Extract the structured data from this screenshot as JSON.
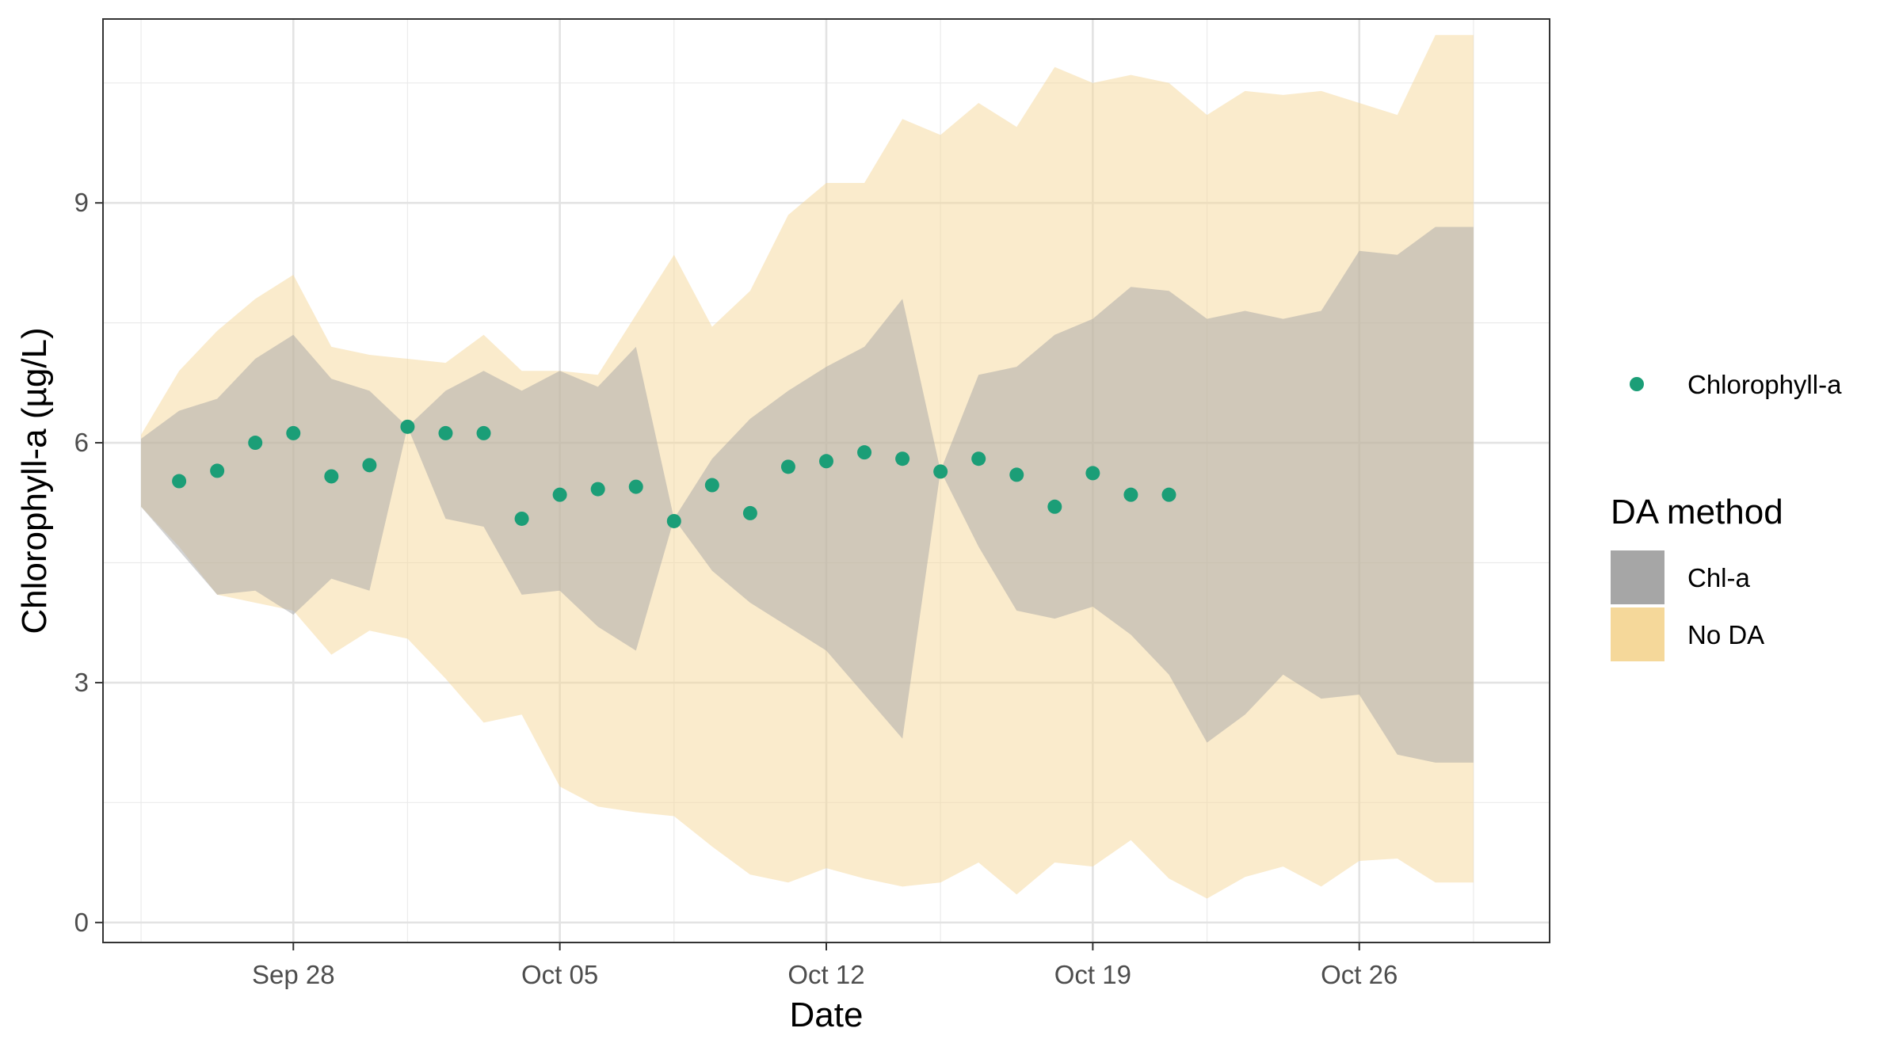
{
  "chart_data": {
    "type": "area",
    "xlabel": "Date",
    "ylabel": "Chlorophyll-a (µg/L)",
    "x_tick_labels": [
      "Sep 28",
      "Oct 05",
      "Oct 12",
      "Oct 19",
      "Oct 26"
    ],
    "x_tick_dates": [
      "2023-09-28",
      "2023-10-05",
      "2023-10-12",
      "2023-10-19",
      "2023-10-26"
    ],
    "x_minor_break_dates": [
      "2023-09-24",
      "2023-10-01",
      "2023-10-08",
      "2023-10-15",
      "2023-10-22",
      "2023-10-29"
    ],
    "xlim": [
      "2023-09-23",
      "2023-10-31"
    ],
    "y_ticks": [
      0,
      3,
      6,
      9
    ],
    "y_tick_labels": [
      "0",
      "3",
      "6",
      "9"
    ],
    "y_minor_breaks": [
      1.5,
      4.5,
      7.5,
      10.5
    ],
    "ylim": [
      -0.25,
      11.3
    ],
    "grid": true,
    "legend_position": "right",
    "point_legend": {
      "label": "Chlorophyll-a",
      "color": "#1b9e77"
    },
    "band_legend": {
      "title": "DA method",
      "entries": [
        {
          "label": "Chl-a",
          "color": "#a6a6a6"
        },
        {
          "label": "No DA",
          "color": "#f5d89a"
        }
      ]
    },
    "bands": [
      {
        "name": "No DA",
        "color": "#f5d89a",
        "opacity": 0.5,
        "dates": [
          "2023-09-24",
          "2023-09-25",
          "2023-09-26",
          "2023-09-27",
          "2023-09-28",
          "2023-09-29",
          "2023-09-30",
          "2023-10-01",
          "2023-10-02",
          "2023-10-03",
          "2023-10-04",
          "2023-10-05",
          "2023-10-06",
          "2023-10-07",
          "2023-10-08",
          "2023-10-09",
          "2023-10-10",
          "2023-10-11",
          "2023-10-12",
          "2023-10-13",
          "2023-10-14",
          "2023-10-15",
          "2023-10-16",
          "2023-10-17",
          "2023-10-18",
          "2023-10-19",
          "2023-10-20",
          "2023-10-21",
          "2023-10-22",
          "2023-10-23",
          "2023-10-24",
          "2023-10-25",
          "2023-10-26",
          "2023-10-27",
          "2023-10-28",
          "2023-10-29"
        ],
        "lower": [
          5.2,
          4.7,
          4.1,
          4.0,
          3.9,
          3.35,
          3.65,
          3.55,
          3.05,
          2.5,
          2.6,
          1.7,
          1.45,
          1.38,
          1.33,
          0.95,
          0.6,
          0.5,
          0.68,
          0.55,
          0.45,
          0.5,
          0.75,
          0.35,
          0.75,
          0.7,
          1.03,
          0.55,
          0.3,
          0.57,
          0.7,
          0.45,
          0.77,
          0.8,
          0.5,
          0.5
        ],
        "upper": [
          6.1,
          6.9,
          7.4,
          7.8,
          8.1,
          7.2,
          7.1,
          7.05,
          7.0,
          7.35,
          6.9,
          6.9,
          6.85,
          7.6,
          8.35,
          7.45,
          7.9,
          8.85,
          9.25,
          9.25,
          10.05,
          9.85,
          10.25,
          9.95,
          10.7,
          10.5,
          10.6,
          10.5,
          10.1,
          10.4,
          10.35,
          10.4,
          10.25,
          10.1,
          11.1,
          11.1
        ]
      },
      {
        "name": "Chl-a",
        "color": "#a6a6a6",
        "opacity": 0.5,
        "dates": [
          "2023-09-24",
          "2023-09-25",
          "2023-09-26",
          "2023-09-27",
          "2023-09-28",
          "2023-09-29",
          "2023-09-30",
          "2023-10-01",
          "2023-10-02",
          "2023-10-03",
          "2023-10-04",
          "2023-10-05",
          "2023-10-06",
          "2023-10-07",
          "2023-10-08",
          "2023-10-09",
          "2023-10-10",
          "2023-10-11",
          "2023-10-12",
          "2023-10-13",
          "2023-10-14",
          "2023-10-15",
          "2023-10-16",
          "2023-10-17",
          "2023-10-18",
          "2023-10-19",
          "2023-10-20",
          "2023-10-21",
          "2023-10-22",
          "2023-10-23",
          "2023-10-24",
          "2023-10-25",
          "2023-10-26",
          "2023-10-27",
          "2023-10-28",
          "2023-10-29"
        ],
        "lower": [
          5.2,
          4.65,
          4.1,
          4.15,
          3.85,
          4.3,
          4.15,
          6.2,
          5.05,
          4.95,
          4.1,
          4.15,
          3.7,
          3.4,
          5.05,
          4.4,
          4.0,
          3.7,
          3.4,
          2.85,
          2.3,
          5.65,
          4.7,
          3.9,
          3.8,
          3.95,
          3.6,
          3.1,
          2.25,
          2.6,
          3.1,
          2.8,
          2.85,
          2.1,
          2.0,
          2.0
        ],
        "upper": [
          6.05,
          6.4,
          6.55,
          7.05,
          7.35,
          6.8,
          6.65,
          6.2,
          6.65,
          6.9,
          6.65,
          6.9,
          6.7,
          7.2,
          5.05,
          5.8,
          6.3,
          6.65,
          6.95,
          7.2,
          7.8,
          5.65,
          6.85,
          6.95,
          7.35,
          7.55,
          7.95,
          7.9,
          7.55,
          7.65,
          7.55,
          7.65,
          8.4,
          8.35,
          8.7,
          8.7
        ]
      }
    ],
    "points": {
      "name": "Chlorophyll-a",
      "color": "#1b9e77",
      "dates": [
        "2023-09-25",
        "2023-09-26",
        "2023-09-27",
        "2023-09-28",
        "2023-09-29",
        "2023-09-30",
        "2023-10-01",
        "2023-10-02",
        "2023-10-03",
        "2023-10-04",
        "2023-10-05",
        "2023-10-06",
        "2023-10-07",
        "2023-10-08",
        "2023-10-09",
        "2023-10-10",
        "2023-10-11",
        "2023-10-12",
        "2023-10-13",
        "2023-10-14",
        "2023-10-15",
        "2023-10-16",
        "2023-10-17",
        "2023-10-18",
        "2023-10-19",
        "2023-10-20",
        "2023-10-21"
      ],
      "values": [
        5.52,
        5.65,
        6.0,
        6.12,
        5.58,
        5.72,
        6.2,
        6.12,
        6.12,
        5.05,
        5.35,
        5.42,
        5.45,
        5.02,
        5.47,
        5.12,
        5.7,
        5.77,
        5.88,
        5.8,
        5.64,
        5.8,
        5.6,
        5.2,
        5.62,
        5.35,
        5.35
      ]
    }
  }
}
